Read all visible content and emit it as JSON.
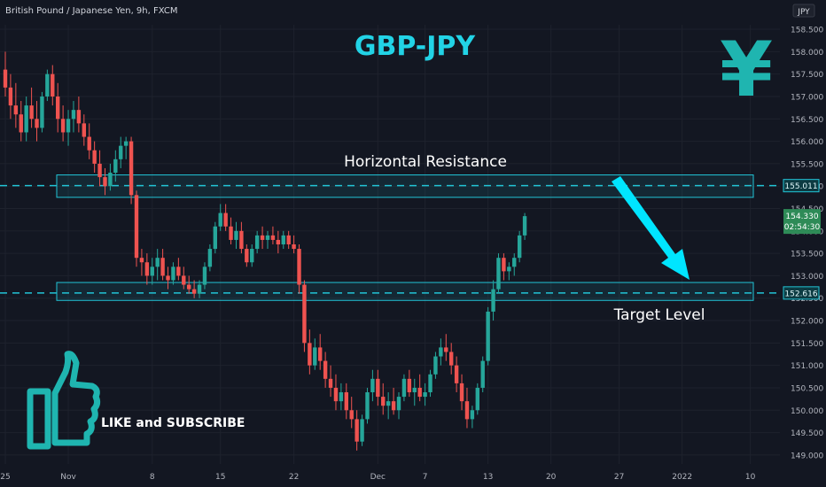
{
  "header": {
    "symbol_label": "British Pound / Japanese Yen, 9h, FXCM"
  },
  "currency_badge": "JPY",
  "chart_title": "GBP-JPY",
  "yen_symbol": "¥",
  "annotations": {
    "resistance_label": "Horizontal Resistance",
    "target_label": "Target Level",
    "cta_label": "LIKE and SUBSCRIBE"
  },
  "icons": {
    "thumbs_up": "thumbs-up-icon",
    "arrow": "arrow-down-right-icon"
  },
  "colors": {
    "background": "#131722",
    "up": "#26a69a",
    "down": "#ef5350",
    "zone": "#22c4d6",
    "accent": "#00e5ff",
    "badge_green": "#2e8b57"
  },
  "chart_data": {
    "type": "candlestick",
    "title": "GBP-JPY",
    "ylim": [
      148.8,
      158.6
    ],
    "y_ticks": [
      "158.500",
      "158.000",
      "157.500",
      "157.000",
      "156.500",
      "156.000",
      "155.500",
      "155.000",
      "154.500",
      "154.000",
      "153.500",
      "153.000",
      "152.500",
      "152.000",
      "151.500",
      "151.000",
      "150.500",
      "150.000",
      "149.500",
      "149.000"
    ],
    "x_ticks": [
      {
        "label": "25",
        "idx": 0
      },
      {
        "label": "Nov",
        "idx": 12
      },
      {
        "label": "8",
        "idx": 28
      },
      {
        "label": "15",
        "idx": 41
      },
      {
        "label": "22",
        "idx": 55
      },
      {
        "label": "Dec",
        "idx": 71
      },
      {
        "label": "7",
        "idx": 80
      },
      {
        "label": "13",
        "idx": 92
      },
      {
        "label": "20",
        "idx": 104
      },
      {
        "label": "27",
        "idx": 117
      },
      {
        "label": "2022",
        "idx": 129
      },
      {
        "label": "10",
        "idx": 142
      }
    ],
    "resistance_zone": {
      "low": 154.75,
      "high": 155.25,
      "level": 155.011,
      "label": "155.011"
    },
    "support_zone": {
      "low": 152.45,
      "high": 152.85,
      "level": 152.616,
      "label": "152.616"
    },
    "last_price": {
      "value": 154.33,
      "label": "154.330",
      "countdown": "02:54:30"
    },
    "candles": [
      [
        157.6,
        158.0,
        157.0,
        157.2
      ],
      [
        157.2,
        157.5,
        156.5,
        156.8
      ],
      [
        156.8,
        157.3,
        156.3,
        156.6
      ],
      [
        156.6,
        156.9,
        156.0,
        156.2
      ],
      [
        156.2,
        157.0,
        156.0,
        156.8
      ],
      [
        156.8,
        157.2,
        156.3,
        156.5
      ],
      [
        156.5,
        156.9,
        156.0,
        156.3
      ],
      [
        156.3,
        157.1,
        156.2,
        157.0
      ],
      [
        157.0,
        157.6,
        156.9,
        157.5
      ],
      [
        157.5,
        157.7,
        156.8,
        157.0
      ],
      [
        157.0,
        157.3,
        156.2,
        156.5
      ],
      [
        156.5,
        156.8,
        156.0,
        156.2
      ],
      [
        156.2,
        156.7,
        155.9,
        156.5
      ],
      [
        156.5,
        156.9,
        156.2,
        156.7
      ],
      [
        156.7,
        157.0,
        156.2,
        156.4
      ],
      [
        156.4,
        156.6,
        155.9,
        156.1
      ],
      [
        156.1,
        156.4,
        155.6,
        155.8
      ],
      [
        155.8,
        156.0,
        155.3,
        155.5
      ],
      [
        155.5,
        155.8,
        155.0,
        155.2
      ],
      [
        155.2,
        155.4,
        154.8,
        155.0
      ],
      [
        155.0,
        155.5,
        154.9,
        155.3
      ],
      [
        155.3,
        155.8,
        155.1,
        155.6
      ],
      [
        155.6,
        156.1,
        155.4,
        155.9
      ],
      [
        155.9,
        156.1,
        155.6,
        156.0
      ],
      [
        156.0,
        156.1,
        154.6,
        154.8
      ],
      [
        154.8,
        154.9,
        153.2,
        153.4
      ],
      [
        153.4,
        153.6,
        153.0,
        153.3
      ],
      [
        153.3,
        153.5,
        152.8,
        153.0
      ],
      [
        153.0,
        153.4,
        152.8,
        153.2
      ],
      [
        153.2,
        153.6,
        152.9,
        153.4
      ],
      [
        153.4,
        153.6,
        152.9,
        153.0
      ],
      [
        153.0,
        153.2,
        152.7,
        152.9
      ],
      [
        152.9,
        153.3,
        152.8,
        153.2
      ],
      [
        153.2,
        153.4,
        152.9,
        153.0
      ],
      [
        153.0,
        153.2,
        152.7,
        152.8
      ],
      [
        152.8,
        153.0,
        152.6,
        152.7
      ],
      [
        152.7,
        152.9,
        152.5,
        152.6
      ],
      [
        152.6,
        152.9,
        152.5,
        152.8
      ],
      [
        152.8,
        153.3,
        152.7,
        153.2
      ],
      [
        153.2,
        153.7,
        153.1,
        153.6
      ],
      [
        153.6,
        154.2,
        153.5,
        154.1
      ],
      [
        154.1,
        154.6,
        154.0,
        154.4
      ],
      [
        154.4,
        154.6,
        154.0,
        154.1
      ],
      [
        154.1,
        154.3,
        153.7,
        153.8
      ],
      [
        153.8,
        154.2,
        153.6,
        154.0
      ],
      [
        154.0,
        154.2,
        153.5,
        153.6
      ],
      [
        153.6,
        153.7,
        153.2,
        153.3
      ],
      [
        153.3,
        153.7,
        153.2,
        153.6
      ],
      [
        153.6,
        154.0,
        153.5,
        153.9
      ],
      [
        153.9,
        154.1,
        153.6,
        153.8
      ],
      [
        153.8,
        154.0,
        153.6,
        153.9
      ],
      [
        153.9,
        154.1,
        153.7,
        153.8
      ],
      [
        153.8,
        154.0,
        153.5,
        153.7
      ],
      [
        153.7,
        154.0,
        153.6,
        153.9
      ],
      [
        153.9,
        154.0,
        153.6,
        153.7
      ],
      [
        153.7,
        153.9,
        153.5,
        153.6
      ],
      [
        153.6,
        153.7,
        152.6,
        152.8
      ],
      [
        152.8,
        152.9,
        151.3,
        151.5
      ],
      [
        151.5,
        151.8,
        150.8,
        151.0
      ],
      [
        151.0,
        151.6,
        150.9,
        151.4
      ],
      [
        151.4,
        151.7,
        150.9,
        151.1
      ],
      [
        151.1,
        151.3,
        150.5,
        150.7
      ],
      [
        150.7,
        151.0,
        150.3,
        150.5
      ],
      [
        150.5,
        150.8,
        150.0,
        150.2
      ],
      [
        150.2,
        150.6,
        150.0,
        150.4
      ],
      [
        150.4,
        150.6,
        149.8,
        150.0
      ],
      [
        150.0,
        150.3,
        149.6,
        149.8
      ],
      [
        149.8,
        150.0,
        149.1,
        149.3
      ],
      [
        149.3,
        149.9,
        149.2,
        149.8
      ],
      [
        149.8,
        150.5,
        149.7,
        150.4
      ],
      [
        150.4,
        150.9,
        150.2,
        150.7
      ],
      [
        150.7,
        150.9,
        150.1,
        150.3
      ],
      [
        150.3,
        150.6,
        149.9,
        150.1
      ],
      [
        150.1,
        150.4,
        149.8,
        150.2
      ],
      [
        150.2,
        150.5,
        149.9,
        150.0
      ],
      [
        150.0,
        150.4,
        149.8,
        150.3
      ],
      [
        150.3,
        150.8,
        150.2,
        150.7
      ],
      [
        150.7,
        150.9,
        150.3,
        150.4
      ],
      [
        150.4,
        150.7,
        150.1,
        150.5
      ],
      [
        150.5,
        150.8,
        150.2,
        150.3
      ],
      [
        150.3,
        150.6,
        150.1,
        150.4
      ],
      [
        150.4,
        150.9,
        150.3,
        150.8
      ],
      [
        150.8,
        151.3,
        150.7,
        151.2
      ],
      [
        151.2,
        151.6,
        151.0,
        151.4
      ],
      [
        151.4,
        151.7,
        151.1,
        151.3
      ],
      [
        151.3,
        151.5,
        150.8,
        151.0
      ],
      [
        151.0,
        151.2,
        150.4,
        150.6
      ],
      [
        150.6,
        150.8,
        150.0,
        150.2
      ],
      [
        150.2,
        150.5,
        149.6,
        149.8
      ],
      [
        149.8,
        150.1,
        149.6,
        150.0
      ],
      [
        150.0,
        150.6,
        149.9,
        150.5
      ],
      [
        150.5,
        151.2,
        150.4,
        151.1
      ],
      [
        151.1,
        152.3,
        151.0,
        152.2
      ],
      [
        152.2,
        152.9,
        152.0,
        152.7
      ],
      [
        152.7,
        153.5,
        152.6,
        153.4
      ],
      [
        153.4,
        153.5,
        152.9,
        153.1
      ],
      [
        153.1,
        153.3,
        152.9,
        153.2
      ],
      [
        153.2,
        153.5,
        153.0,
        153.4
      ],
      [
        153.4,
        154.0,
        153.3,
        153.9
      ],
      [
        153.9,
        154.4,
        153.8,
        154.33
      ]
    ]
  }
}
